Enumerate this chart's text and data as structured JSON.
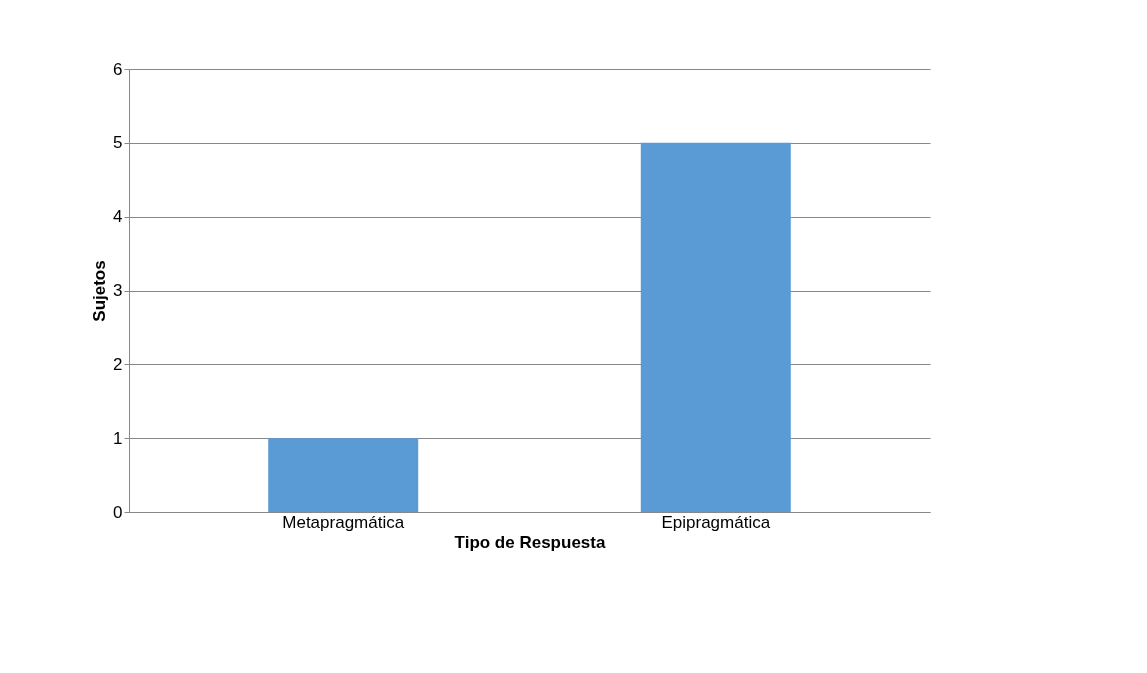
{
  "chart_data": {
    "type": "bar",
    "xlabel": "Tipo de Respuesta",
    "ylabel": "Sujetos",
    "categories": [
      "Metapragmática",
      "Epipragmática"
    ],
    "values": [
      1,
      5
    ],
    "color": "#5b9bd5",
    "ylim": [
      0,
      6
    ],
    "yticks": [
      0,
      1,
      2,
      3,
      4,
      5,
      6
    ],
    "grid": "y"
  }
}
